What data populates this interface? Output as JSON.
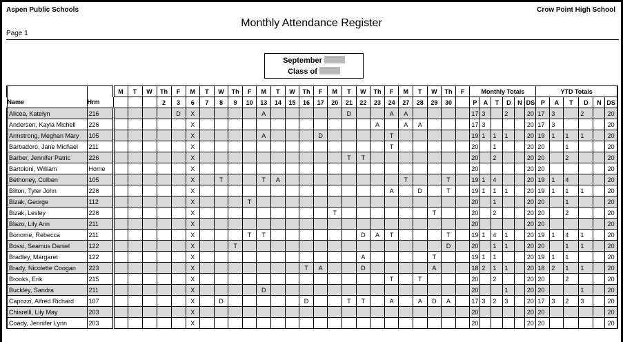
{
  "header": {
    "district": "Aspen Public Schools",
    "school": "Crow Point High School",
    "title": "Monthly Attendance Register",
    "page": "Page 1",
    "month": "September",
    "class_of": "Class of"
  },
  "columns": {
    "name": "Name",
    "hrm": "Hrm",
    "weekdays": [
      "M",
      "T",
      "W",
      "Th",
      "F",
      "M",
      "T",
      "W",
      "Th",
      "F",
      "M",
      "T",
      "W",
      "Th",
      "F",
      "M",
      "T",
      "W",
      "Th",
      "F",
      "M",
      "T",
      "W",
      "Th",
      "F"
    ],
    "dates": [
      "",
      "",
      "",
      "2",
      "3",
      "6",
      "7",
      "8",
      "9",
      "10",
      "13",
      "14",
      "15",
      "16",
      "17",
      "20",
      "21",
      "22",
      "23",
      "24",
      "27",
      "28",
      "29",
      "30",
      ""
    ],
    "monthly_totals": "Monthly Totals",
    "ytd_totals": "YTD Totals",
    "total_codes": [
      "P",
      "A",
      "T",
      "D",
      "N",
      "DS"
    ]
  },
  "rows": [
    {
      "name": "Alicea, Katelyn",
      "hrm": "216",
      "days": [
        "",
        "",
        "",
        "",
        "D",
        "X",
        "",
        "",
        "",
        "",
        "A",
        "",
        "",
        "",
        "",
        "",
        "D",
        "",
        "",
        "A",
        "A",
        "",
        "",
        "",
        ""
      ],
      "monthly": [
        "17",
        "3",
        "",
        "2",
        "",
        "20"
      ],
      "ytd": [
        "17",
        "3",
        "",
        "2",
        "",
        "20"
      ]
    },
    {
      "name": "Andersen, Kayla Michell",
      "hrm": "226",
      "days": [
        "",
        "",
        "",
        "",
        "",
        "X",
        "",
        "",
        "",
        "",
        "",
        "",
        "",
        "",
        "",
        "",
        "",
        "",
        "A",
        "",
        "A",
        "A",
        "",
        "",
        ""
      ],
      "monthly": [
        "17",
        "3",
        "",
        "",
        "",
        "20"
      ],
      "ytd": [
        "17",
        "3",
        "",
        "",
        "",
        "20"
      ]
    },
    {
      "name": "Armstrong, Meghan Mary",
      "hrm": "105",
      "days": [
        "",
        "",
        "",
        "",
        "",
        "X",
        "",
        "",
        "",
        "",
        "A",
        "",
        "",
        "",
        "D",
        "",
        "",
        "",
        "",
        "T",
        "",
        "",
        "",
        "",
        ""
      ],
      "monthly": [
        "19",
        "1",
        "1",
        "1",
        "",
        "20"
      ],
      "ytd": [
        "19",
        "1",
        "1",
        "1",
        "",
        "20"
      ]
    },
    {
      "name": "Barbadoro, Jane Michael",
      "hrm": "211",
      "days": [
        "",
        "",
        "",
        "",
        "",
        "X",
        "",
        "",
        "",
        "",
        "",
        "",
        "",
        "",
        "",
        "",
        "",
        "",
        "",
        "T",
        "",
        "",
        "",
        "",
        ""
      ],
      "monthly": [
        "20",
        "",
        "1",
        "",
        "",
        "20"
      ],
      "ytd": [
        "20",
        "",
        "1",
        "",
        "",
        "20"
      ]
    },
    {
      "name": "Barber, Jennifer Patric",
      "hrm": "226",
      "days": [
        "",
        "",
        "",
        "",
        "",
        "X",
        "",
        "",
        "",
        "",
        "",
        "",
        "",
        "",
        "",
        "",
        "T",
        "T",
        "",
        "",
        "",
        "",
        "",
        "",
        ""
      ],
      "monthly": [
        "20",
        "",
        "2",
        "",
        "",
        "20"
      ],
      "ytd": [
        "20",
        "",
        "2",
        "",
        "",
        "20"
      ]
    },
    {
      "name": "Bartoloni, William",
      "hrm": "Home",
      "days": [
        "",
        "",
        "",
        "",
        "",
        "X",
        "",
        "",
        "",
        "",
        "",
        "",
        "",
        "",
        "",
        "",
        "",
        "",
        "",
        "",
        "",
        "",
        "",
        "",
        ""
      ],
      "monthly": [
        "20",
        "",
        "",
        "",
        "",
        "20"
      ],
      "ytd": [
        "20",
        "",
        "",
        "",
        "",
        "20"
      ]
    },
    {
      "name": "Bethoney, Colben",
      "hrm": "105",
      "days": [
        "",
        "",
        "",
        "",
        "",
        "X",
        "",
        "T",
        "",
        "",
        "T",
        "A",
        "",
        "",
        "",
        "",
        "",
        "",
        "",
        "",
        "T",
        "",
        "",
        "T",
        ""
      ],
      "monthly": [
        "19",
        "1",
        "4",
        "",
        "",
        "20"
      ],
      "ytd": [
        "19",
        "1",
        "4",
        "",
        "",
        "20"
      ]
    },
    {
      "name": "Bilton, Tyler John",
      "hrm": "226",
      "days": [
        "",
        "",
        "",
        "",
        "",
        "X",
        "",
        "",
        "",
        "",
        "",
        "",
        "",
        "",
        "",
        "",
        "",
        "",
        "",
        "A",
        "",
        "D",
        "",
        "T",
        ""
      ],
      "monthly": [
        "19",
        "1",
        "1",
        "1",
        "",
        "20"
      ],
      "ytd": [
        "19",
        "1",
        "1",
        "1",
        "",
        "20"
      ]
    },
    {
      "name": "Bizak, George",
      "hrm": "112",
      "days": [
        "",
        "",
        "",
        "",
        "",
        "X",
        "",
        "",
        "",
        "T",
        "",
        "",
        "",
        "",
        "",
        "",
        "",
        "",
        "",
        "",
        "",
        "",
        "",
        "",
        ""
      ],
      "monthly": [
        "20",
        "",
        "1",
        "",
        "",
        "20"
      ],
      "ytd": [
        "20",
        "",
        "1",
        "",
        "",
        "20"
      ]
    },
    {
      "name": "Bizak, Lesley",
      "hrm": "226",
      "days": [
        "",
        "",
        "",
        "",
        "",
        "X",
        "",
        "",
        "",
        "",
        "",
        "",
        "",
        "",
        "",
        "T",
        "",
        "",
        "",
        "",
        "",
        "",
        "T",
        "",
        ""
      ],
      "monthly": [
        "20",
        "",
        "2",
        "",
        "",
        "20"
      ],
      "ytd": [
        "20",
        "",
        "2",
        "",
        "",
        "20"
      ]
    },
    {
      "name": "Blazo, Lily Ann",
      "hrm": "211",
      "days": [
        "",
        "",
        "",
        "",
        "",
        "X",
        "",
        "",
        "",
        "",
        "",
        "",
        "",
        "",
        "",
        "",
        "",
        "",
        "",
        "",
        "",
        "",
        "",
        "",
        ""
      ],
      "monthly": [
        "20",
        "",
        "",
        "",
        "",
        "20"
      ],
      "ytd": [
        "20",
        "",
        "",
        "",
        "",
        "20"
      ]
    },
    {
      "name": "Bonome, Rebecca",
      "hrm": "211",
      "days": [
        "",
        "",
        "",
        "",
        "",
        "X",
        "",
        "",
        "",
        "T",
        "T",
        "",
        "",
        "",
        "",
        "",
        "",
        "D",
        "A",
        "T",
        "",
        "",
        "",
        "T",
        ""
      ],
      "monthly": [
        "19",
        "1",
        "4",
        "1",
        "",
        "20"
      ],
      "ytd": [
        "19",
        "1",
        "4",
        "1",
        "",
        "20"
      ]
    },
    {
      "name": "Bossi, Seamus Daniel",
      "hrm": "122",
      "days": [
        "",
        "",
        "",
        "",
        "",
        "X",
        "",
        "",
        "T",
        "",
        "",
        "",
        "",
        "",
        "",
        "",
        "",
        "",
        "",
        "",
        "",
        "",
        "",
        "D",
        ""
      ],
      "monthly": [
        "20",
        "",
        "1",
        "1",
        "",
        "20"
      ],
      "ytd": [
        "20",
        "",
        "1",
        "1",
        "",
        "20"
      ]
    },
    {
      "name": "Bradley, Margaret",
      "hrm": "122",
      "days": [
        "",
        "",
        "",
        "",
        "",
        "X",
        "",
        "",
        "",
        "",
        "",
        "",
        "",
        "",
        "",
        "",
        "",
        "A",
        "",
        "",
        "",
        "",
        "T",
        "",
        ""
      ],
      "monthly": [
        "19",
        "1",
        "1",
        "",
        "",
        "20"
      ],
      "ytd": [
        "19",
        "1",
        "1",
        "",
        "",
        "20"
      ]
    },
    {
      "name": "Brady, Nicolette Coogan",
      "hrm": "223",
      "days": [
        "",
        "",
        "",
        "",
        "",
        "X",
        "",
        "",
        "",
        "",
        "",
        "",
        "",
        "T",
        "A",
        "",
        "",
        "D",
        "",
        "",
        "",
        "",
        "A",
        "",
        ""
      ],
      "monthly": [
        "18",
        "2",
        "1",
        "1",
        "",
        "20"
      ],
      "ytd": [
        "18",
        "2",
        "1",
        "1",
        "",
        "20"
      ]
    },
    {
      "name": "Brooks, Erik",
      "hrm": "215",
      "days": [
        "",
        "",
        "",
        "",
        "",
        "X",
        "",
        "",
        "",
        "",
        "",
        "",
        "",
        "",
        "",
        "",
        "",
        "",
        "",
        "T",
        "",
        "T",
        "",
        "",
        ""
      ],
      "monthly": [
        "20",
        "",
        "2",
        "",
        "",
        "20"
      ],
      "ytd": [
        "20",
        "",
        "2",
        "",
        "",
        "20"
      ]
    },
    {
      "name": "Buckley, Sandra",
      "hrm": "211",
      "days": [
        "",
        "",
        "",
        "",
        "",
        "X",
        "",
        "",
        "",
        "",
        "D",
        "",
        "",
        "",
        "",
        "",
        "",
        "",
        "",
        "",
        "",
        "",
        "",
        "",
        ""
      ],
      "monthly": [
        "20",
        "",
        "",
        "1",
        "",
        "20"
      ],
      "ytd": [
        "20",
        "",
        "",
        "1",
        "",
        "20"
      ]
    },
    {
      "name": "Capozzi, Alfred Richard",
      "hrm": "107",
      "days": [
        "",
        "",
        "",
        "",
        "",
        "X",
        "",
        "D",
        "",
        "",
        "",
        "",
        "",
        "D",
        "",
        "",
        "T",
        "T",
        "",
        "A",
        "",
        "A",
        "D",
        "A",
        ""
      ],
      "monthly": [
        "17",
        "3",
        "2",
        "3",
        "",
        "20"
      ],
      "ytd": [
        "17",
        "3",
        "2",
        "3",
        "",
        "20"
      ]
    },
    {
      "name": "Chiarelli, Lily May",
      "hrm": "203",
      "days": [
        "",
        "",
        "",
        "",
        "",
        "X",
        "",
        "",
        "",
        "",
        "",
        "",
        "",
        "",
        "",
        "",
        "",
        "",
        "",
        "",
        "",
        "",
        "",
        "",
        ""
      ],
      "monthly": [
        "20",
        "",
        "",
        "",
        "",
        "20"
      ],
      "ytd": [
        "20",
        "",
        "",
        "",
        "",
        "20"
      ]
    },
    {
      "name": "Coady, Jennifer Lynn",
      "hrm": "203",
      "days": [
        "",
        "",
        "",
        "",
        "",
        "X",
        "",
        "",
        "",
        "",
        "",
        "",
        "",
        "",
        "",
        "",
        "",
        "",
        "",
        "",
        "",
        "",
        "",
        "",
        ""
      ],
      "monthly": [
        "20",
        "",
        "",
        "",
        "",
        "20"
      ],
      "ytd": [
        "20",
        "",
        "",
        "",
        "",
        "20"
      ]
    }
  ]
}
